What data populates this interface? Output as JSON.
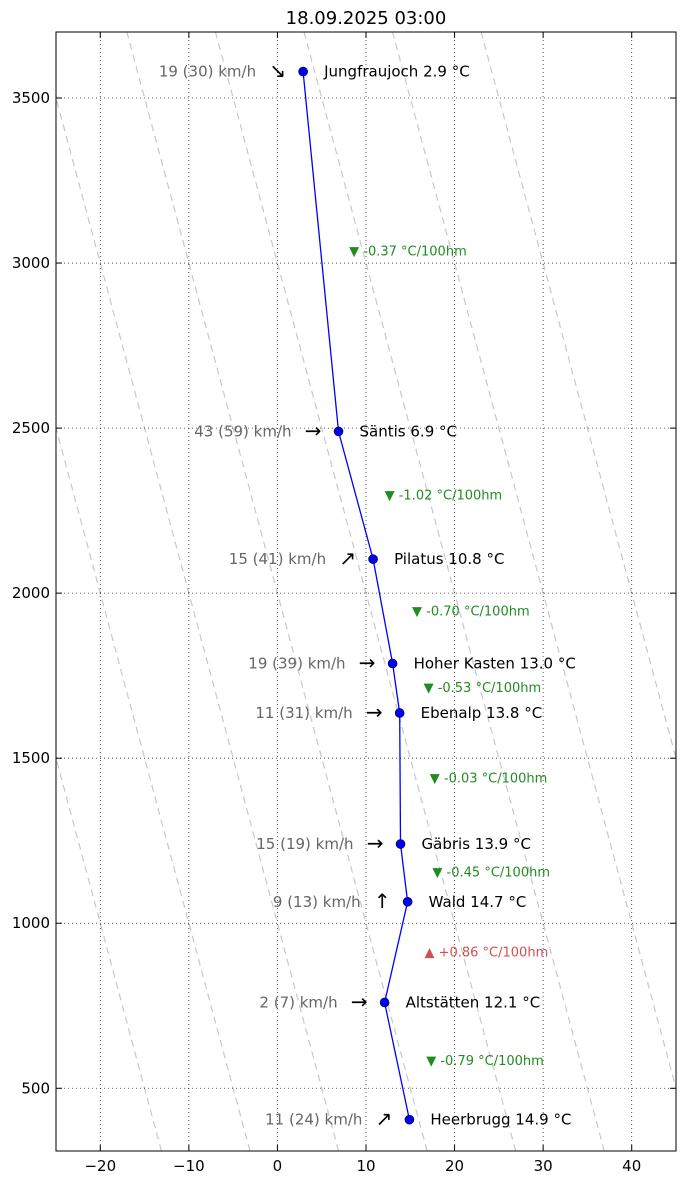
{
  "chart_data": {
    "type": "line",
    "title": "18.09.2025 03:00",
    "xlabel": "",
    "ylabel": "",
    "xlim": [
      -25,
      45
    ],
    "ylim": [
      310,
      3700
    ],
    "grid": true,
    "x_ticks": [
      -20,
      -10,
      0,
      10,
      20,
      30,
      40
    ],
    "x_tick_labels": [
      "−20",
      "−10",
      "0",
      "10",
      "20",
      "30",
      "40"
    ],
    "y_ticks": [
      500,
      1000,
      1500,
      2000,
      2500,
      3000,
      3500
    ],
    "y_tick_labels": [
      "500",
      "1000",
      "1500",
      "2000",
      "2500",
      "3000",
      "3500"
    ],
    "line_color": "#0000ff",
    "dry_adiabat_color": "#c8c8c8",
    "dry_adiabat_origins_at_y0": [
      -10,
      0,
      10,
      20,
      30,
      40,
      50,
      60
    ],
    "dry_adiabat_lapse_per_100m": 1.0,
    "series": [
      {
        "name": "",
        "points": [
          {
            "station": "Heerbrugg",
            "temp": 14.9,
            "alt": 405,
            "label": "Heerbrugg 14.9 °C",
            "wind": "11 (24) km/h",
            "arrow": "↗"
          },
          {
            "station": "Altstätten",
            "temp": 12.1,
            "alt": 760,
            "label": "Altstätten 12.1 °C",
            "wind": "2 (7) km/h",
            "arrow": "→"
          },
          {
            "station": "Wald",
            "temp": 14.7,
            "alt": 1065,
            "label": "Wald 14.7 °C",
            "wind": "9 (13) km/h",
            "arrow": "↑"
          },
          {
            "station": "Gäbris",
            "temp": 13.9,
            "alt": 1240,
            "label": "Gäbris 13.9 °C",
            "wind": "15 (19) km/h",
            "arrow": "→"
          },
          {
            "station": "Ebenalp",
            "temp": 13.8,
            "alt": 1637,
            "label": "Ebenalp 13.8 °C",
            "wind": "11 (31) km/h",
            "arrow": "→"
          },
          {
            "station": "Hoher Kasten",
            "temp": 13.0,
            "alt": 1787,
            "label": "Hoher Kasten 13.0 °C",
            "wind": "19 (39) km/h",
            "arrow": "→"
          },
          {
            "station": "Pilatus",
            "temp": 10.8,
            "alt": 2103,
            "label": "Pilatus 10.8 °C",
            "wind": "15 (41) km/h",
            "arrow": "↗"
          },
          {
            "station": "Säntis",
            "temp": 6.9,
            "alt": 2490,
            "label": "Säntis 6.9 °C",
            "wind": "43 (59) km/h",
            "arrow": "→"
          },
          {
            "station": "Jungfraujoch",
            "temp": 2.9,
            "alt": 3580,
            "label": "Jungfraujoch 2.9 °C",
            "wind": "19 (30) km/h",
            "arrow": "↘"
          }
        ]
      }
    ],
    "gradients": [
      {
        "text": "▼ -0.79 °C/100hm",
        "x": 16.8,
        "y": 583,
        "color": "#228b22"
      },
      {
        "text": "▲ +0.86 °C/100hm",
        "x": 16.6,
        "y": 912,
        "color": "#d05050"
      },
      {
        "text": "▼ -0.45 °C/100hm",
        "x": 17.5,
        "y": 1153,
        "color": "#228b22"
      },
      {
        "text": "▼ -0.03 °C/100hm",
        "x": 17.2,
        "y": 1438,
        "color": "#228b22"
      },
      {
        "text": "▼ -0.53 °C/100hm",
        "x": 16.5,
        "y": 1712,
        "color": "#228b22"
      },
      {
        "text": "▼ -0.70 °C/100hm",
        "x": 15.2,
        "y": 1945,
        "color": "#228b22"
      },
      {
        "text": "▼ -1.02 °C/100hm",
        "x": 12.1,
        "y": 2296,
        "color": "#228b22"
      },
      {
        "text": "▼ -0.37 °C/100hm",
        "x": 8.1,
        "y": 3035,
        "color": "#228b22"
      }
    ]
  }
}
